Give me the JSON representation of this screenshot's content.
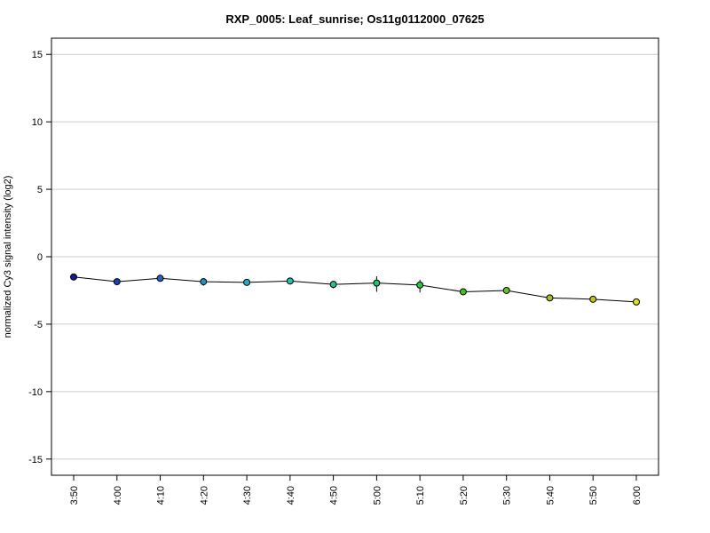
{
  "chart_data": {
    "type": "line",
    "title": "RXP_0005: Leaf_sunrise; Os11g0112000_07625",
    "xlabel": "",
    "ylabel": "normalized Cy3 signal intensity (log2)",
    "ylim": [
      -16.2,
      16.2
    ],
    "yticks": [
      15,
      10,
      5,
      0,
      -5,
      -10,
      -15
    ],
    "grid": true,
    "categories": [
      "3:50",
      "4:00",
      "4:10",
      "4:20",
      "4:30",
      "4:40",
      "4:50",
      "5:00",
      "5:10",
      "5:20",
      "5:30",
      "5:40",
      "5:50",
      "6:00"
    ],
    "values": [
      -1.5,
      -1.85,
      -1.6,
      -1.85,
      -1.9,
      -1.8,
      -2.05,
      -1.95,
      -2.1,
      -2.6,
      -2.5,
      -3.05,
      -3.15,
      -3.35
    ],
    "error_low": [
      -1.75,
      -1.95,
      -1.7,
      -2.15,
      -2.0,
      -1.9,
      -2.35,
      -2.6,
      -2.65,
      -2.75,
      -2.75,
      -3.2,
      -3.25,
      -3.45
    ],
    "error_high": [
      -1.25,
      -1.75,
      -1.5,
      -1.6,
      -1.8,
      -1.7,
      -1.8,
      -1.45,
      -1.7,
      -2.45,
      -2.25,
      -2.85,
      -3.05,
      -3.25
    ],
    "point_colors": [
      "#1a1a8c",
      "#1a3fb0",
      "#1f66c4",
      "#1f8fc4",
      "#1fb0c4",
      "#1fc4b0",
      "#1fc48f",
      "#1fc466",
      "#26c43f",
      "#3fc41f",
      "#66c41f",
      "#a3c41f",
      "#c4c41f",
      "#e0e01f"
    ],
    "line_color": "#000000"
  }
}
